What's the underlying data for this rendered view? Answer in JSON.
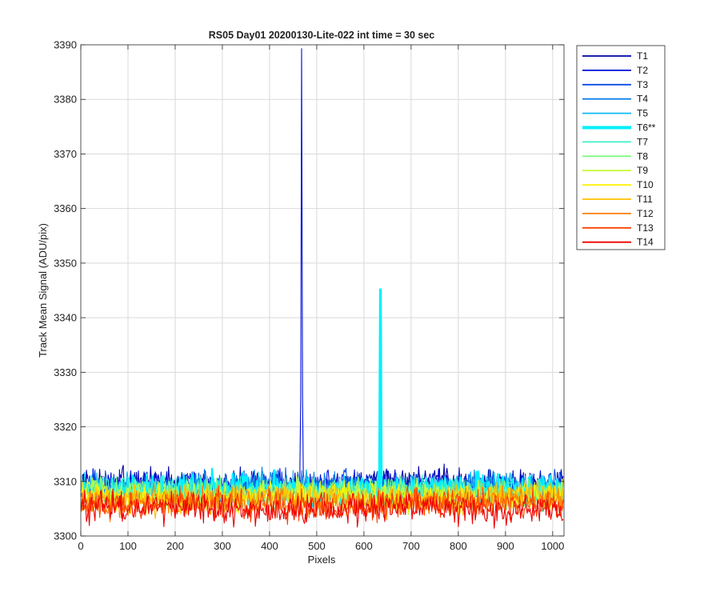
{
  "chart_data": {
    "type": "line",
    "title": "RS05 Day01 20200130-Lite-022 int time = 30 sec",
    "xlabel": "Pixels",
    "ylabel": "Track Mean Signal (ADU/pix)",
    "xlim": [
      0,
      1024
    ],
    "ylim": [
      3300,
      3390
    ],
    "xticks": [
      0,
      100,
      200,
      300,
      400,
      500,
      600,
      700,
      800,
      900,
      1000
    ],
    "yticks": [
      3300,
      3310,
      3320,
      3330,
      3340,
      3350,
      3360,
      3370,
      3380,
      3390
    ],
    "grid": true,
    "legend_position": "outside-top-right",
    "series": [
      {
        "name": "T1",
        "color": "#0000aa",
        "baseline": 3309.6,
        "noise": 1.3
      },
      {
        "name": "T2",
        "color": "#0010d8",
        "baseline": 3309.3,
        "noise": 1.3,
        "spike": {
          "x": 468,
          "y": 3389.3
        }
      },
      {
        "name": "T3",
        "color": "#0a4ce6",
        "baseline": 3309.0,
        "noise": 1.3
      },
      {
        "name": "T4",
        "color": "#0f80e8",
        "baseline": 3308.9,
        "noise": 1.3
      },
      {
        "name": "T5",
        "color": "#10b8f2",
        "baseline": 3308.6,
        "noise": 1.3
      },
      {
        "name": "T6**",
        "color": "#00f0ff",
        "baseline": 3308.5,
        "noise": 1.3,
        "highlight": true,
        "spike": {
          "x": 635,
          "y": 3345.2
        }
      },
      {
        "name": "T7",
        "color": "#3ef2c8",
        "baseline": 3308.0,
        "noise": 1.3
      },
      {
        "name": "T8",
        "color": "#80fa80",
        "baseline": 3307.8,
        "noise": 1.3
      },
      {
        "name": "T9",
        "color": "#c8fa3a",
        "baseline": 3307.5,
        "noise": 1.3
      },
      {
        "name": "T10",
        "color": "#fff200",
        "baseline": 3307.2,
        "noise": 1.3
      },
      {
        "name": "T11",
        "color": "#ffc000",
        "baseline": 3306.8,
        "noise": 1.3
      },
      {
        "name": "T12",
        "color": "#ff8000",
        "baseline": 3306.3,
        "noise": 1.3
      },
      {
        "name": "T13",
        "color": "#ff4000",
        "baseline": 3305.7,
        "noise": 1.3
      },
      {
        "name": "T14",
        "color": "#ee0000",
        "baseline": 3305.0,
        "noise": 1.3
      }
    ]
  }
}
